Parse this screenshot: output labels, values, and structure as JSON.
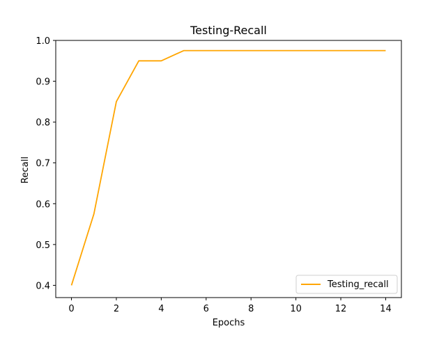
{
  "chart_data": {
    "type": "line",
    "title": "Testing-Recall",
    "xlabel": "Epochs",
    "ylabel": "Recall",
    "x": [
      0,
      1,
      2,
      3,
      4,
      5,
      6,
      7,
      8,
      9,
      10,
      11,
      12,
      13,
      14
    ],
    "series": [
      {
        "name": "Testing_recall",
        "color": "#ffa500",
        "values": [
          0.4,
          0.575,
          0.85,
          0.95,
          0.95,
          0.975,
          0.975,
          0.975,
          0.975,
          0.975,
          0.975,
          0.975,
          0.975,
          0.975,
          0.975
        ]
      }
    ],
    "xlim": [
      -0.7,
      14.7
    ],
    "ylim": [
      0.37,
      1.0
    ],
    "xticks": [
      0,
      2,
      4,
      6,
      8,
      10,
      12,
      14
    ],
    "yticks": [
      0.4,
      0.5,
      0.6,
      0.7,
      0.8,
      0.9,
      1.0
    ],
    "xtick_labels": [
      "0",
      "2",
      "4",
      "6",
      "8",
      "10",
      "12",
      "14"
    ],
    "ytick_labels": [
      "0.4",
      "0.5",
      "0.6",
      "0.7",
      "0.8",
      "0.9",
      "1.0"
    ],
    "grid": false,
    "legend_position": "bottom-right"
  }
}
